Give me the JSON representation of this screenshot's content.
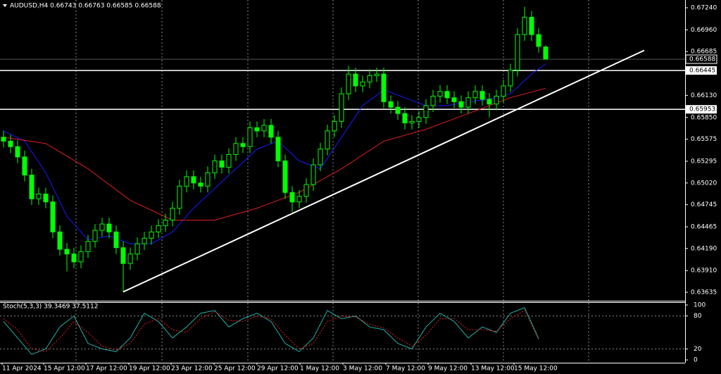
{
  "chart_data": {
    "type": "candlestick",
    "title": "AUDUSD,H4  0.66743 0.66763 0.66585 0.66588",
    "bull_color": "#00ff00",
    "bear_color": "#00ff00",
    "xlim": [
      -0.5,
      96.8
    ],
    "ylim": [
      0.63528,
      0.67338
    ],
    "yticks": [
      {
        "value": 0.6724,
        "label": "0.67240"
      },
      {
        "value": 0.6696,
        "label": "0.66960"
      },
      {
        "value": 0.66685,
        "label": "0.66685"
      },
      {
        "value": 0.6613,
        "label": "0.66130"
      },
      {
        "value": 0.6585,
        "label": "0.65850"
      },
      {
        "value": 0.65575,
        "label": "0.65575"
      },
      {
        "value": 0.65295,
        "label": "0.65295"
      },
      {
        "value": 0.6502,
        "label": "0.65020"
      },
      {
        "value": 0.64745,
        "label": "0.64745"
      },
      {
        "value": 0.64465,
        "label": "0.64465"
      },
      {
        "value": 0.6419,
        "label": "0.64190"
      },
      {
        "value": 0.6391,
        "label": "0.63910"
      },
      {
        "value": 0.63635,
        "label": "0.63635"
      }
    ],
    "xticks": [
      {
        "value": -0.2,
        "label": "11 Apr 2024"
      },
      {
        "value": 5.7,
        "label": "15 Apr 12:00"
      },
      {
        "value": 11.7,
        "label": "17 Apr 12:00"
      },
      {
        "value": 17.8,
        "label": "19 Apr 12:00"
      },
      {
        "value": 23.8,
        "label": "23 Apr 12:00"
      },
      {
        "value": 29.9,
        "label": "25 Apr 12:00"
      },
      {
        "value": 36,
        "label": "29 Apr 12:00"
      },
      {
        "value": 42.1,
        "label": "1 May 12:00"
      },
      {
        "value": 48.2,
        "label": "3 May 12:00"
      },
      {
        "value": 54.3,
        "label": "7 May 12:00"
      },
      {
        "value": 60.3,
        "label": "9 May 12:00"
      },
      {
        "value": 66.4,
        "label": "13 May 12:00"
      },
      {
        "value": 72.5,
        "label": "15 May 12:00"
      }
    ],
    "vgrid": [
      10.3,
      22.5,
      34.7,
      46.8,
      58.9,
      71,
      83.1
    ],
    "open": [
      0.656,
      0.6555,
      0.6548,
      0.6535,
      0.6512,
      0.6482,
      0.6488,
      0.6478,
      0.644,
      0.6418,
      0.6412,
      0.6402,
      0.6415,
      0.6428,
      0.6442,
      0.645,
      0.644,
      0.642,
      0.64,
      0.6412,
      0.6425,
      0.6432,
      0.644,
      0.6448,
      0.6455,
      0.647,
      0.6498,
      0.651,
      0.6502,
      0.6498,
      0.6515,
      0.653,
      0.6522,
      0.6538,
      0.6552,
      0.6548,
      0.6572,
      0.6568,
      0.6575,
      0.656,
      0.653,
      0.649,
      0.6478,
      0.6485,
      0.65,
      0.6525,
      0.6545,
      0.6568,
      0.658,
      0.6615,
      0.664,
      0.6625,
      0.663,
      0.6638,
      0.664,
      0.6605,
      0.6598,
      0.659,
      0.6578,
      0.658,
      0.6585,
      0.66,
      0.6612,
      0.6618,
      0.661,
      0.6605,
      0.6598,
      0.661,
      0.6618,
      0.6608,
      0.6602,
      0.6612,
      0.6625,
      0.6645,
      0.669,
      0.6712,
      0.669,
      0.66743
    ],
    "high": [
      0.6568,
      0.6563,
      0.6556,
      0.6543,
      0.652,
      0.6496,
      0.6496,
      0.6486,
      0.6448,
      0.6426,
      0.642,
      0.6423,
      0.6436,
      0.645,
      0.6458,
      0.6458,
      0.6448,
      0.6428,
      0.642,
      0.6433,
      0.644,
      0.6448,
      0.6456,
      0.6463,
      0.6478,
      0.6506,
      0.6518,
      0.6518,
      0.651,
      0.6523,
      0.6538,
      0.6538,
      0.6546,
      0.656,
      0.656,
      0.658,
      0.658,
      0.6583,
      0.6583,
      0.6568,
      0.6538,
      0.6498,
      0.6493,
      0.6508,
      0.6533,
      0.6553,
      0.6576,
      0.6588,
      0.6623,
      0.665,
      0.6648,
      0.6638,
      0.6646,
      0.6648,
      0.6648,
      0.6613,
      0.6606,
      0.6598,
      0.6588,
      0.6593,
      0.6608,
      0.662,
      0.6626,
      0.6626,
      0.6618,
      0.6613,
      0.6618,
      0.6626,
      0.6626,
      0.6616,
      0.662,
      0.6633,
      0.6653,
      0.6698,
      0.6725,
      0.672,
      0.6698,
      0.66763
    ],
    "low": [
      0.6547,
      0.654,
      0.6527,
      0.6504,
      0.6474,
      0.6474,
      0.647,
      0.6432,
      0.641,
      0.639,
      0.6394,
      0.6394,
      0.6407,
      0.642,
      0.6434,
      0.6432,
      0.6412,
      0.6364,
      0.6392,
      0.6404,
      0.6417,
      0.6424,
      0.6432,
      0.644,
      0.6447,
      0.6462,
      0.649,
      0.6494,
      0.649,
      0.649,
      0.6507,
      0.6514,
      0.6514,
      0.653,
      0.654,
      0.654,
      0.656,
      0.656,
      0.6552,
      0.6522,
      0.6482,
      0.6465,
      0.647,
      0.6477,
      0.6492,
      0.6517,
      0.6537,
      0.656,
      0.6572,
      0.6607,
      0.6617,
      0.6617,
      0.6622,
      0.663,
      0.6597,
      0.659,
      0.6582,
      0.657,
      0.657,
      0.6572,
      0.6577,
      0.6592,
      0.6604,
      0.6602,
      0.6597,
      0.659,
      0.659,
      0.6602,
      0.66,
      0.6585,
      0.6594,
      0.6604,
      0.6617,
      0.6637,
      0.6682,
      0.6682,
      0.6667,
      0.66585
    ],
    "close": [
      0.6555,
      0.6548,
      0.6535,
      0.6512,
      0.6482,
      0.6488,
      0.6478,
      0.644,
      0.6418,
      0.6412,
      0.6402,
      0.6415,
      0.6428,
      0.6442,
      0.645,
      0.644,
      0.642,
      0.64,
      0.6412,
      0.6425,
      0.6432,
      0.644,
      0.6448,
      0.6455,
      0.647,
      0.6498,
      0.651,
      0.6502,
      0.6498,
      0.6515,
      0.653,
      0.6522,
      0.6538,
      0.6552,
      0.6548,
      0.6572,
      0.6568,
      0.6575,
      0.656,
      0.653,
      0.649,
      0.6478,
      0.6485,
      0.65,
      0.6525,
      0.6545,
      0.6568,
      0.658,
      0.6615,
      0.664,
      0.6625,
      0.663,
      0.6638,
      0.664,
      0.6605,
      0.6598,
      0.659,
      0.6578,
      0.658,
      0.6585,
      0.66,
      0.6612,
      0.6618,
      0.661,
      0.6605,
      0.6598,
      0.661,
      0.6618,
      0.6608,
      0.6602,
      0.6612,
      0.6625,
      0.6645,
      0.669,
      0.6712,
      0.669,
      0.6675,
      0.66588
    ],
    "overlays": [
      {
        "color": "#1a1aff",
        "x": [
          0,
          3,
          6,
          9,
          12,
          15,
          18,
          21,
          24,
          27,
          30,
          33,
          36,
          39,
          42,
          45,
          48,
          51,
          54,
          57,
          60,
          63,
          66,
          69,
          72,
          75,
          77
        ],
        "values": [
          0.6568,
          0.6555,
          0.6515,
          0.646,
          0.643,
          0.6435,
          0.6425,
          0.6425,
          0.644,
          0.647,
          0.6495,
          0.652,
          0.6545,
          0.6555,
          0.653,
          0.652,
          0.656,
          0.66,
          0.662,
          0.661,
          0.66,
          0.66,
          0.6605,
          0.6608,
          0.6615,
          0.664,
          0.6653
        ]
      },
      {
        "color": "#e02020",
        "x": [
          0,
          6,
          12,
          18,
          24,
          30,
          36,
          42,
          48,
          54,
          60,
          66,
          72,
          77
        ],
        "values": [
          0.656,
          0.6552,
          0.652,
          0.648,
          0.6455,
          0.6455,
          0.647,
          0.649,
          0.652,
          0.6555,
          0.657,
          0.659,
          0.661,
          0.6622
        ]
      }
    ],
    "levels": [
      {
        "value": 0.66445,
        "label": "0.66445"
      },
      {
        "value": 0.65953,
        "label": "0.65953"
      }
    ],
    "last_price": {
      "value": 0.66588,
      "label": "0.66588"
    },
    "trendline": {
      "color": "#ffffff",
      "x": [
        17,
        91
      ],
      "values": [
        0.6364,
        0.667
      ]
    },
    "stoch": {
      "title": "Stoch(5,3,3) 39.3469 37.5112",
      "ylim": [
        0,
        100
      ],
      "yticks": [
        100,
        80,
        20,
        0
      ],
      "levels": [
        80,
        20
      ],
      "x": [
        0,
        2,
        4,
        6,
        8,
        10,
        12,
        14,
        16,
        18,
        20,
        22,
        24,
        26,
        28,
        30,
        32,
        34,
        36,
        38,
        40,
        42,
        44,
        46,
        48,
        50,
        52,
        54,
        56,
        58,
        60,
        62,
        64,
        66,
        68,
        70,
        72,
        74,
        76
      ],
      "main": {
        "color": "#20b2aa",
        "values": [
          70,
          40,
          10,
          20,
          60,
          80,
          30,
          20,
          15,
          40,
          85,
          70,
          40,
          60,
          85,
          90,
          60,
          75,
          85,
          70,
          30,
          15,
          40,
          90,
          75,
          80,
          60,
          55,
          30,
          20,
          60,
          85,
          70,
          40,
          60,
          50,
          85,
          95,
          39
        ]
      },
      "signal": {
        "color": "#e02020",
        "values": [
          75,
          55,
          20,
          15,
          40,
          70,
          50,
          25,
          18,
          30,
          65,
          75,
          55,
          50,
          75,
          88,
          72,
          70,
          80,
          75,
          45,
          20,
          30,
          70,
          80,
          78,
          65,
          58,
          40,
          25,
          45,
          75,
          75,
          55,
          55,
          52,
          75,
          90,
          37
        ]
      }
    }
  }
}
